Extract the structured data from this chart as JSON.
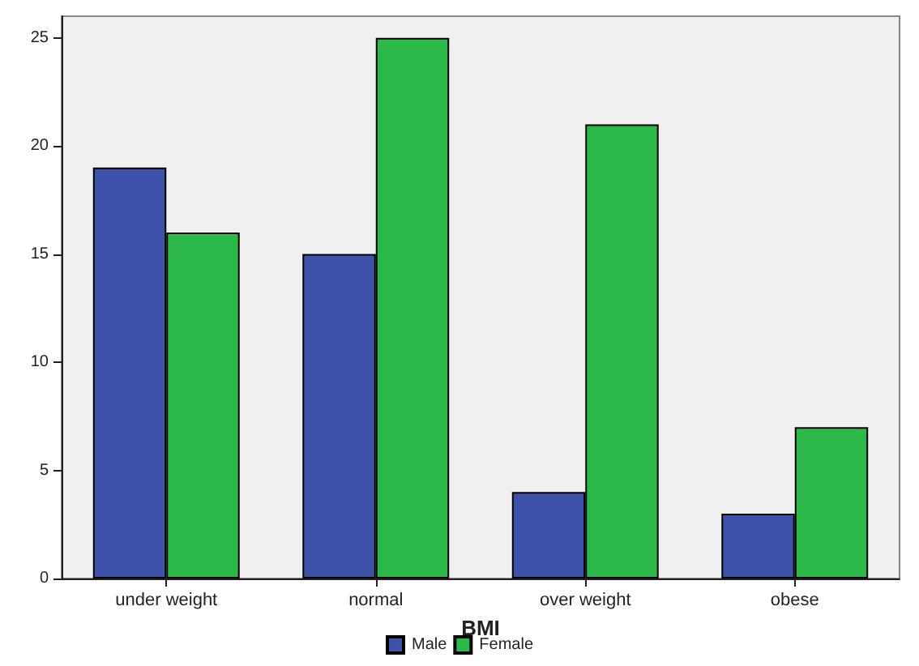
{
  "chart_data": {
    "type": "bar",
    "xlabel": "BMI",
    "categories": [
      "under weight",
      "normal",
      "over weight",
      "obese"
    ],
    "series": [
      {
        "name": "Male",
        "color": "#3d52a8",
        "values": [
          19,
          15,
          4,
          3
        ]
      },
      {
        "name": "Female",
        "color": "#2db84a",
        "values": [
          16,
          25,
          21,
          7
        ]
      }
    ],
    "ylim": [
      0,
      26
    ],
    "yticks": [
      0,
      5,
      10,
      15,
      20,
      25
    ],
    "legend": "bottom"
  }
}
